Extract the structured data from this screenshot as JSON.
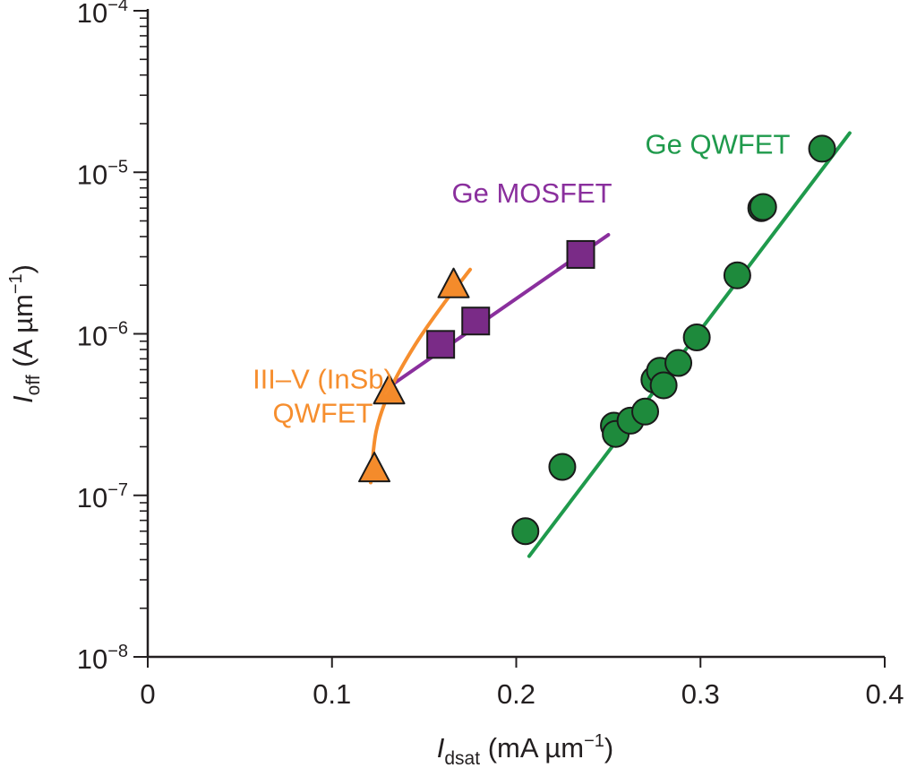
{
  "chart_data": {
    "type": "scatter",
    "title": "",
    "xlabel": {
      "main": "I",
      "sub": "dsat",
      "unit": " (mA µm",
      "exp": "−1",
      "close": ")"
    },
    "ylabel": {
      "main": "I",
      "sub": "off",
      "unit": " (A µm",
      "exp": "−1",
      "close": ")"
    },
    "xlim": [
      0,
      0.4
    ],
    "ylim": [
      1e-08,
      0.0001
    ],
    "yscale": "log",
    "x_ticks": [
      {
        "value": 0,
        "label": "0"
      },
      {
        "value": 0.1,
        "label": "0.1"
      },
      {
        "value": 0.2,
        "label": "0.2"
      },
      {
        "value": 0.3,
        "label": "0.3"
      },
      {
        "value": 0.4,
        "label": "0.4"
      }
    ],
    "y_ticks": [
      {
        "value": 1e-08,
        "base": "10",
        "exp": "−8"
      },
      {
        "value": 1e-07,
        "base": "10",
        "exp": "−7"
      },
      {
        "value": 1e-06,
        "base": "10",
        "exp": "−6"
      },
      {
        "value": 1e-05,
        "base": "10",
        "exp": "−5"
      },
      {
        "value": 0.0001,
        "base": "10",
        "exp": "−4"
      }
    ],
    "series": [
      {
        "name": "Ge QWFET",
        "label_lines": [
          "Ge QWFET"
        ],
        "label_anchor": [
          0.27,
          1.3e-05
        ],
        "marker": "circle",
        "color": "#1f9a4c",
        "marker_fill": "#1e8a3c",
        "points": [
          [
            0.205,
            6e-08
          ],
          [
            0.225,
            1.5e-07
          ],
          [
            0.253,
            2.7e-07
          ],
          [
            0.254,
            2.4e-07
          ],
          [
            0.262,
            2.9e-07
          ],
          [
            0.27,
            3.3e-07
          ],
          [
            0.275,
            5.2e-07
          ],
          [
            0.278,
            5.9e-07
          ],
          [
            0.28,
            4.8e-07
          ],
          [
            0.288,
            6.6e-07
          ],
          [
            0.298,
            9.5e-07
          ],
          [
            0.32,
            2.3e-06
          ],
          [
            0.333,
            6e-06
          ],
          [
            0.334,
            6.1e-06
          ],
          [
            0.366,
            1.4e-05
          ]
        ],
        "fit": {
          "type": "line",
          "points": [
            [
              0.207,
              4.2e-08
            ],
            [
              0.381,
              1.75e-05
            ]
          ]
        }
      },
      {
        "name": "Ge MOSFET",
        "label_lines": [
          "Ge MOSFET"
        ],
        "label_anchor": [
          0.165,
          6.5e-06
        ],
        "marker": "square",
        "color": "#8a2f9d",
        "marker_fill": "#7a2b87",
        "points": [
          [
            0.159,
            8.6e-07
          ],
          [
            0.178,
            1.2e-06
          ],
          [
            0.235,
            3.1e-06
          ]
        ],
        "fit": {
          "type": "line",
          "points": [
            [
              0.131,
              4.7e-07
            ],
            [
              0.25,
              4.1e-06
            ]
          ]
        }
      },
      {
        "name": "III–V (InSb) QWFET",
        "label_lines": [
          "III–V (InSb)",
          "QWFET"
        ],
        "label_anchor": [
          0.095,
          4.6e-07
        ],
        "marker": "triangle",
        "color": "#f68e2e",
        "marker_fill": "#f48b2b",
        "points": [
          [
            0.123,
            1.45e-07
          ],
          [
            0.131,
            4.4e-07
          ],
          [
            0.166,
            2e-06
          ]
        ],
        "fit": {
          "type": "curve",
          "points": [
            [
              0.121,
              1.2e-07
            ],
            [
              0.124,
              2.5e-07
            ],
            [
              0.132,
              4.6e-07
            ],
            [
              0.145,
              8.5e-07
            ],
            [
              0.16,
              1.5e-06
            ],
            [
              0.175,
              2.5e-06
            ]
          ]
        }
      }
    ],
    "grid": false,
    "legend": "inline labels"
  }
}
